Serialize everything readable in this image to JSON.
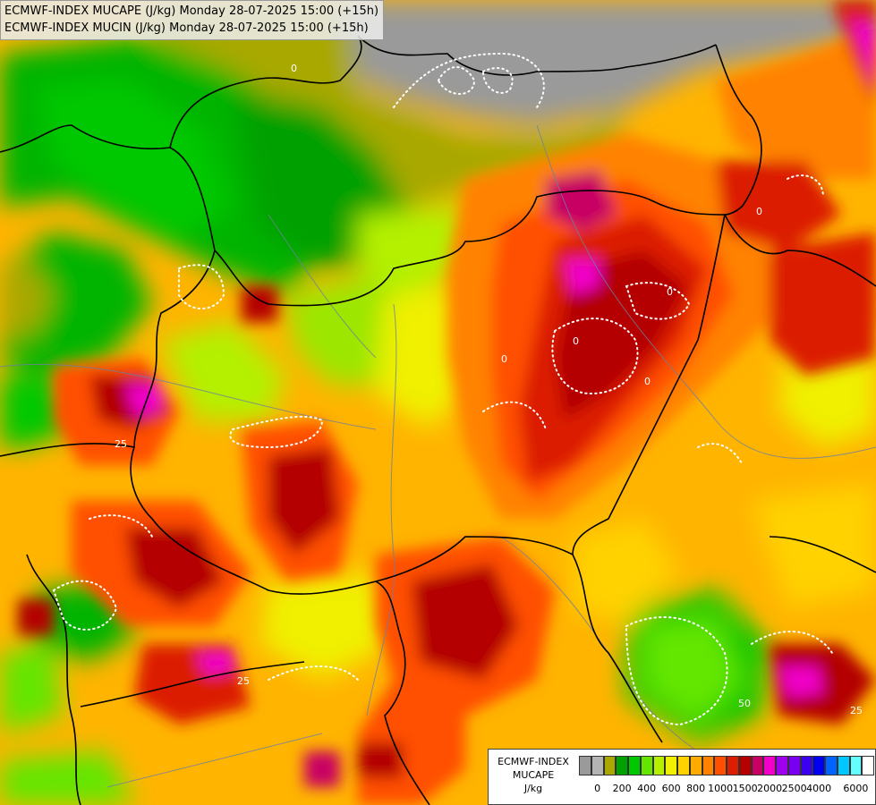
{
  "title": {
    "line1": "ECMWF-INDEX MUCAPE (J/kg) Monday 28-07-2025 15:00 (+15h)",
    "line2": "ECMWF-INDEX MUCIN (J/kg) Monday 28-07-2025 15:00 (+15h)"
  },
  "contour_labels": [
    "0",
    "0",
    "0",
    "0",
    "0",
    "0",
    "25",
    "25",
    "25",
    "50"
  ],
  "legend": {
    "line1": "ECMWF-INDEX",
    "line2": "MUCAPE",
    "line3": "J/kg",
    "colors": [
      "#9a9a9a",
      "#b4b4b4",
      "#a8a800",
      "#00a000",
      "#00c800",
      "#64e600",
      "#b4f000",
      "#f0f000",
      "#ffd200",
      "#ffaa00",
      "#ff8200",
      "#ff5000",
      "#dc1e00",
      "#b40000",
      "#c80064",
      "#f000c8",
      "#a000f0",
      "#7800f0",
      "#3c00f0",
      "#0000f0",
      "#0064ff",
      "#00c8ff",
      "#64ffff",
      "#ffffff"
    ],
    "tick_labels": [
      "0",
      "200",
      "400",
      "600",
      "800",
      "1000",
      "1500",
      "2000",
      "2500",
      "4000",
      "6000"
    ]
  }
}
